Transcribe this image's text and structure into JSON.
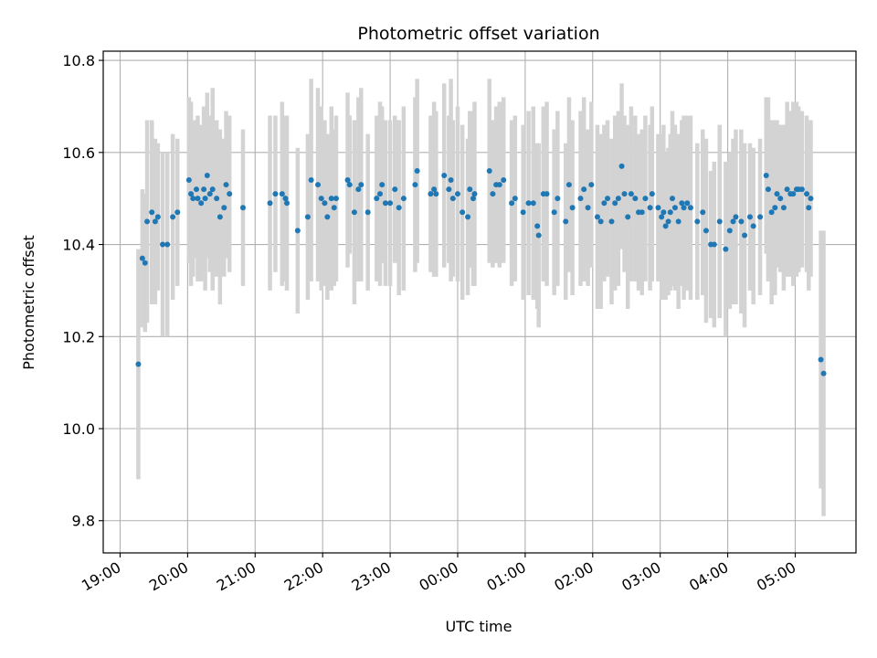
{
  "chart_data": {
    "type": "scatter",
    "title": "Photometric offset variation",
    "xlabel": "UTC time",
    "ylabel": "Photometric offset",
    "x_unit": "hours (UTC, continuing past midnight)",
    "xlim": [
      18.75,
      29.9
    ],
    "ylim": [
      9.73,
      10.82
    ],
    "x_ticks": [
      {
        "value": 19,
        "label": "19:00"
      },
      {
        "value": 20,
        "label": "20:00"
      },
      {
        "value": 21,
        "label": "21:00"
      },
      {
        "value": 22,
        "label": "22:00"
      },
      {
        "value": 23,
        "label": "23:00"
      },
      {
        "value": 24,
        "label": "00:00"
      },
      {
        "value": 25,
        "label": "01:00"
      },
      {
        "value": 26,
        "label": "02:00"
      },
      {
        "value": 27,
        "label": "03:00"
      },
      {
        "value": 28,
        "label": "04:00"
      },
      {
        "value": 29,
        "label": "05:00"
      }
    ],
    "y_ticks": [
      {
        "value": 9.8,
        "label": "9.8"
      },
      {
        "value": 10.0,
        "label": "10.0"
      },
      {
        "value": 10.2,
        "label": "10.2"
      },
      {
        "value": 10.4,
        "label": "10.4"
      },
      {
        "value": 10.6,
        "label": "10.6"
      },
      {
        "value": 10.8,
        "label": "10.8"
      }
    ],
    "grid": true,
    "colors": {
      "point": "#1f77b4",
      "errorbar": "#d3d3d3",
      "grid": "#b0b0b0"
    },
    "series": [
      {
        "x": [
          19.27,
          19.33,
          19.37,
          19.4,
          19.47,
          19.52,
          19.56,
          19.63,
          19.7,
          19.78,
          19.85,
          20.02,
          20.05,
          20.08,
          20.13,
          20.15,
          20.2,
          20.24,
          20.26,
          20.29,
          20.33,
          20.37,
          20.43,
          20.48,
          20.54,
          20.57,
          20.62,
          20.82,
          21.22,
          21.3,
          21.4,
          21.45,
          21.47,
          21.63,
          21.78,
          21.83,
          21.93,
          21.98,
          22.03,
          22.07,
          22.13,
          22.17,
          22.2,
          22.37,
          22.4,
          22.47,
          22.53,
          22.57,
          22.67,
          22.8,
          22.85,
          22.88,
          22.93,
          23.0,
          23.07,
          23.13,
          23.2,
          23.37,
          23.4,
          23.6,
          23.65,
          23.68,
          23.8,
          23.87,
          23.9,
          23.93,
          24.0,
          24.07,
          24.15,
          24.18,
          24.23,
          24.25,
          24.47,
          24.52,
          24.57,
          24.62,
          24.68,
          24.8,
          24.85,
          24.97,
          25.05,
          25.12,
          25.18,
          25.2,
          25.27,
          25.32,
          25.43,
          25.48,
          25.6,
          25.65,
          25.7,
          25.82,
          25.87,
          25.93,
          25.98,
          26.07,
          26.12,
          26.17,
          26.22,
          26.28,
          26.33,
          26.38,
          26.43,
          26.47,
          26.52,
          26.57,
          26.63,
          26.68,
          26.73,
          26.78,
          26.85,
          26.88,
          26.97,
          27.02,
          27.05,
          27.08,
          27.12,
          27.15,
          27.18,
          27.22,
          27.27,
          27.32,
          27.35,
          27.4,
          27.45,
          27.55,
          27.63,
          27.68,
          27.75,
          27.8,
          27.88,
          27.97,
          28.03,
          28.08,
          28.12,
          28.2,
          28.25,
          28.33,
          28.38,
          28.48,
          28.57,
          28.6,
          28.65,
          28.7,
          28.73,
          28.78,
          28.83,
          28.88,
          28.93,
          28.97,
          29.02,
          29.05,
          29.1,
          29.17,
          29.2,
          29.23,
          29.38,
          29.42
        ],
        "y": [
          10.14,
          10.37,
          10.36,
          10.45,
          10.47,
          10.45,
          10.46,
          10.4,
          10.4,
          10.46,
          10.47,
          10.54,
          10.51,
          10.5,
          10.52,
          10.5,
          10.49,
          10.52,
          10.5,
          10.55,
          10.51,
          10.52,
          10.5,
          10.46,
          10.48,
          10.53,
          10.51,
          10.48,
          10.49,
          10.51,
          10.51,
          10.5,
          10.49,
          10.43,
          10.46,
          10.54,
          10.53,
          10.5,
          10.49,
          10.46,
          10.5,
          10.48,
          10.5,
          10.54,
          10.53,
          10.47,
          10.52,
          10.53,
          10.47,
          10.5,
          10.51,
          10.53,
          10.49,
          10.49,
          10.52,
          10.48,
          10.5,
          10.53,
          10.56,
          10.51,
          10.52,
          10.51,
          10.55,
          10.52,
          10.54,
          10.5,
          10.51,
          10.47,
          10.46,
          10.52,
          10.5,
          10.51,
          10.56,
          10.51,
          10.53,
          10.53,
          10.54,
          10.49,
          10.5,
          10.47,
          10.49,
          10.49,
          10.44,
          10.42,
          10.51,
          10.51,
          10.47,
          10.5,
          10.45,
          10.53,
          10.48,
          10.5,
          10.52,
          10.48,
          10.53,
          10.46,
          10.45,
          10.49,
          10.5,
          10.45,
          10.49,
          10.5,
          10.57,
          10.51,
          10.46,
          10.51,
          10.5,
          10.47,
          10.47,
          10.5,
          10.48,
          10.51,
          10.48,
          10.46,
          10.47,
          10.44,
          10.45,
          10.47,
          10.5,
          10.48,
          10.45,
          10.49,
          10.48,
          10.49,
          10.48,
          10.45,
          10.47,
          10.43,
          10.4,
          10.4,
          10.45,
          10.39,
          10.43,
          10.45,
          10.46,
          10.45,
          10.42,
          10.46,
          10.44,
          10.46,
          10.55,
          10.52,
          10.47,
          10.48,
          10.51,
          10.5,
          10.48,
          10.52,
          10.51,
          10.51,
          10.52,
          10.52,
          10.52,
          10.51,
          10.48,
          10.5,
          10.15,
          10.12
        ],
        "yerr": [
          0.25,
          0.15,
          0.15,
          0.22,
          0.2,
          0.18,
          0.16,
          0.2,
          0.2,
          0.18,
          0.16,
          0.18,
          0.2,
          0.17,
          0.15,
          0.18,
          0.17,
          0.18,
          0.2,
          0.18,
          0.17,
          0.22,
          0.17,
          0.19,
          0.15,
          0.16,
          0.17,
          0.17,
          0.19,
          0.17,
          0.2,
          0.18,
          0.19,
          0.18,
          0.18,
          0.22,
          0.21,
          0.2,
          0.18,
          0.18,
          0.2,
          0.17,
          0.18,
          0.19,
          0.15,
          0.2,
          0.2,
          0.21,
          0.17,
          0.18,
          0.2,
          0.17,
          0.18,
          0.18,
          0.16,
          0.19,
          0.2,
          0.19,
          0.2,
          0.17,
          0.19,
          0.18,
          0.2,
          0.16,
          0.22,
          0.17,
          0.19,
          0.19,
          0.17,
          0.17,
          0.19,
          0.2,
          0.2,
          0.16,
          0.17,
          0.18,
          0.18,
          0.18,
          0.18,
          0.19,
          0.2,
          0.21,
          0.18,
          0.2,
          0.19,
          0.2,
          0.18,
          0.19,
          0.17,
          0.19,
          0.19,
          0.19,
          0.2,
          0.17,
          0.18,
          0.2,
          0.19,
          0.17,
          0.17,
          0.18,
          0.19,
          0.19,
          0.18,
          0.17,
          0.2,
          0.19,
          0.18,
          0.17,
          0.18,
          0.18,
          0.18,
          0.19,
          0.16,
          0.18,
          0.19,
          0.16,
          0.16,
          0.17,
          0.19,
          0.18,
          0.19,
          0.18,
          0.2,
          0.19,
          0.2,
          0.17,
          0.18,
          0.2,
          0.16,
          0.18,
          0.21,
          0.19,
          0.17,
          0.18,
          0.19,
          0.2,
          0.2,
          0.16,
          0.17,
          0.17,
          0.17,
          0.2,
          0.2,
          0.19,
          0.16,
          0.16,
          0.18,
          0.19,
          0.18,
          0.2,
          0.19,
          0.18,
          0.17,
          0.17,
          0.18,
          0.17,
          0.28,
          0.31
        ]
      }
    ]
  }
}
